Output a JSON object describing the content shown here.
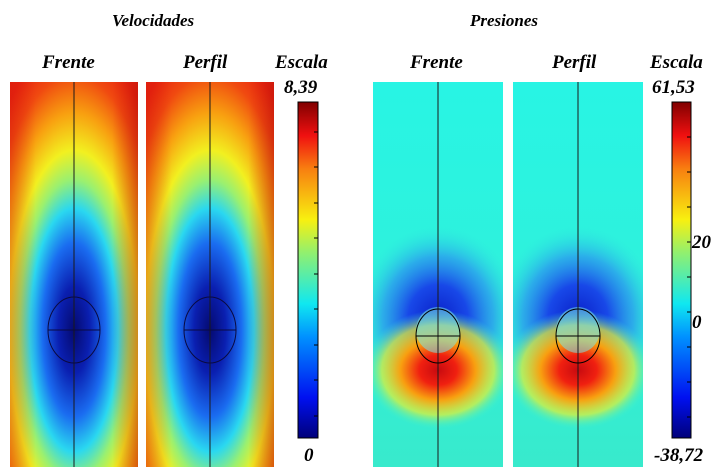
{
  "sections": {
    "velocity": {
      "title": "Velocidades",
      "front_label": "Frente",
      "profile_label": "Perfil",
      "scale_label": "Escala",
      "scale_max": "8,39",
      "scale_min": "0"
    },
    "pressure": {
      "title": "Presiones",
      "front_label": "Frente",
      "profile_label": "Perfil",
      "scale_label": "Escala",
      "scale_max": "61,53",
      "scale_mid_high": "20",
      "scale_mid_low": "0",
      "scale_min": "-38,72"
    }
  },
  "colors": {
    "velocity_far_field": "#e8220f",
    "velocity_core": "#0a1fb0",
    "pressure_background": "#2ef2dc",
    "pressure_low": "#1040e0",
    "pressure_high": "#e81010"
  }
}
